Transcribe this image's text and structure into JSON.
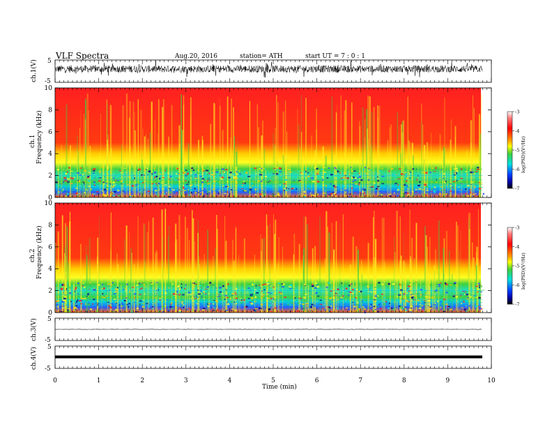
{
  "header": {
    "title": "VLF  Spectra",
    "date": "Aug.20, 2016",
    "station": "station= ATH",
    "start": "start  UT  =   7  : 0  : 1"
  },
  "chart_data": [
    {
      "type": "line",
      "ylabel": "ch.1(V)",
      "ylim": [
        -5,
        5
      ],
      "yticks": [
        "5",
        "-5"
      ],
      "trace": "noisy broadband voltage, centered near 1 V, amplitude about ±2 V"
    },
    {
      "type": "heatmap",
      "ylabel_channel": "ch.1",
      "ylabel_axis": "Frequency  (kHz)",
      "ylim": [
        0,
        10
      ],
      "yticks": [
        "0",
        "2",
        "4",
        "6",
        "8",
        "10"
      ],
      "colorbar_label": "log(PSD)(V²/Hz)",
      "colorbar_ticks": [
        "-3",
        "-4",
        "-5",
        "-6",
        "-7"
      ],
      "colorbar_range": [
        -7,
        -3
      ]
    },
    {
      "type": "heatmap",
      "ylabel_channel": "ch.2",
      "ylabel_axis": "Frequency  (kHz)",
      "ylim": [
        0,
        10
      ],
      "yticks": [
        "0",
        "2",
        "4",
        "6",
        "8",
        "10"
      ],
      "colorbar_label": "log(PSD)(V²/Hz)",
      "colorbar_ticks": [
        "-3",
        "-4",
        "-5",
        "-6",
        "-7"
      ],
      "colorbar_range": [
        -7,
        -3
      ]
    },
    {
      "type": "line",
      "ylabel": "ch.3(V)",
      "ylim": [
        -5,
        5
      ],
      "yticks": [
        "5",
        "-5"
      ],
      "trace": "flat line near 0 V"
    },
    {
      "type": "line",
      "ylabel": "ch.4(V)",
      "ylim": [
        -5,
        5
      ],
      "yticks": [
        "5",
        "-5"
      ],
      "trace": "constant thick line near 0 V"
    }
  ],
  "xaxis": {
    "label": "Time  (min)",
    "ticks": [
      "0",
      "1",
      "2",
      "3",
      "4",
      "5",
      "6",
      "7",
      "8",
      "9",
      "10"
    ],
    "range": [
      0,
      10
    ],
    "data_end": 9.8
  },
  "colors": {
    "red": "#ff2020",
    "yellow": "#ffff00",
    "green": "#3cd23c",
    "cyan": "#00e0e0",
    "blue": "#0030ff",
    "navy": "#000060"
  }
}
